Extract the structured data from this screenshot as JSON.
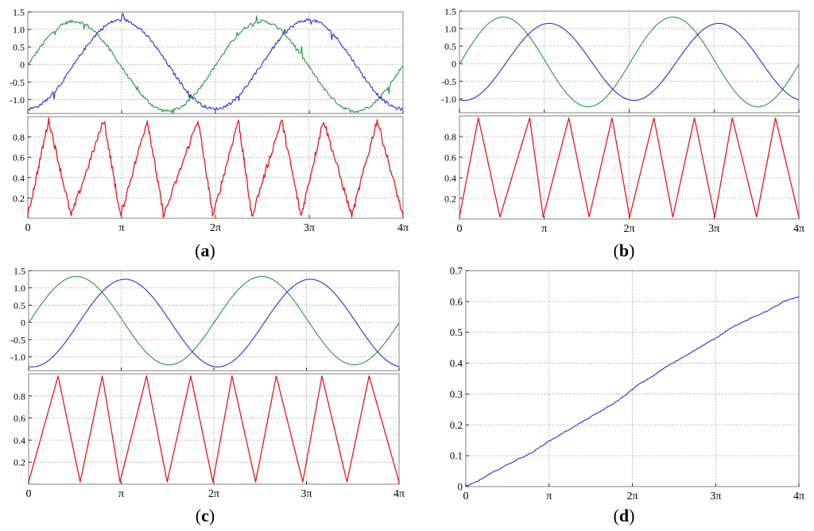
{
  "figure": {
    "colors": {
      "green": "#1f9a3a",
      "blue": "#2b2bdc",
      "red": "#e8141c",
      "axis": "#000000",
      "grid": "#9a9a9a",
      "frame": "#808080"
    },
    "x_tick_labels": [
      "0",
      "π",
      "2π",
      "3π",
      "4π"
    ]
  },
  "chart_data": [
    {
      "id": "a",
      "caption_letter": "a",
      "type": "line",
      "noisy": true,
      "top": {
        "xlim": [
          0,
          12.566
        ],
        "ylim": [
          -1.4,
          1.5
        ],
        "yticks": [
          1.5,
          1.0,
          0.5,
          0,
          -0.5,
          -1.0
        ],
        "ytick_labels": [
          "1.5",
          "1.0",
          "0.5",
          "0",
          "-0.5",
          "-1.0"
        ],
        "grid": true,
        "series": [
          {
            "color_key": "green",
            "amplitude": 1.28,
            "offset": -0.05,
            "phase": 0.17,
            "freq": 1.0
          },
          {
            "color_key": "blue",
            "amplitude": 1.27,
            "offset": 0.0,
            "phase": -1.4,
            "freq": 1.0
          }
        ]
      },
      "bottom": {
        "xlim": [
          0,
          12.566
        ],
        "ylim": [
          0,
          1.0
        ],
        "yticks": [
          0.8,
          0.6,
          0.4,
          0.2
        ],
        "ytick_labels": [
          "0.8",
          "0.6",
          "0.4",
          "0.2"
        ],
        "grid": true,
        "series": [
          {
            "color_key": "red",
            "peaks_x": [
              0.7,
              2.55,
              4.0,
              5.7,
              7.05,
              8.5,
              9.9,
              11.7
            ],
            "troughs_x": [
              0.0,
              1.45,
              3.1,
              4.55,
              6.2,
              7.5,
              9.15,
              10.85,
              12.566
            ],
            "peak_y": 0.97
          }
        ]
      },
      "xticks": [
        0,
        3.1416,
        6.2832,
        9.4248,
        12.566
      ]
    },
    {
      "id": "b",
      "caption_letter": "b",
      "type": "line",
      "noisy": false,
      "top": {
        "xlim": [
          0,
          12.566
        ],
        "ylim": [
          -1.4,
          1.5
        ],
        "yticks": [
          1.5,
          1.0,
          0.5,
          0,
          -0.5,
          -1.0
        ],
        "ytick_labels": [
          "1.5",
          "1.0",
          "0.5",
          "0",
          "-0.5",
          "-1.0"
        ],
        "grid": true,
        "series": [
          {
            "color_key": "green",
            "amplitude": 1.28,
            "offset": 0.05,
            "phase": 0.1,
            "freq": 1.0
          },
          {
            "color_key": "blue",
            "amplitude": 1.1,
            "offset": 0.05,
            "phase": -1.6,
            "freq": 1.0
          }
        ]
      },
      "bottom": {
        "xlim": [
          0,
          12.566
        ],
        "ylim": [
          0,
          1.0
        ],
        "yticks": [
          0.8,
          0.6,
          0.4,
          0.2
        ],
        "ytick_labels": [
          "0.8",
          "0.6",
          "0.4",
          "0.2"
        ],
        "grid": true,
        "series": [
          {
            "color_key": "red",
            "peaks_x": [
              0.7,
              2.6,
              4.05,
              5.65,
              7.2,
              8.7,
              10.1,
              11.7
            ],
            "troughs_x": [
              0.0,
              1.5,
              3.1,
              4.8,
              6.3,
              7.9,
              9.45,
              11.0,
              12.566
            ],
            "peak_y": 0.98
          }
        ]
      },
      "xticks": [
        0,
        3.1416,
        6.2832,
        9.4248,
        12.566
      ]
    },
    {
      "id": "c",
      "caption_letter": "c",
      "type": "line",
      "noisy": false,
      "top": {
        "xlim": [
          0,
          12.566
        ],
        "ylim": [
          -1.4,
          1.5
        ],
        "yticks": [
          1.5,
          1.0,
          0.5,
          0,
          -0.5,
          -1.0
        ],
        "ytick_labels": [
          "1.5",
          "1.0",
          "0.5",
          "0",
          "-0.5",
          "-1.0"
        ],
        "grid": true,
        "series": [
          {
            "color_key": "green",
            "amplitude": 1.28,
            "offset": 0.05,
            "phase": 0.1,
            "freq": 1.0
          },
          {
            "color_key": "blue",
            "amplitude": 1.27,
            "offset": -0.02,
            "phase": -1.55,
            "freq": 1.0
          }
        ]
      },
      "bottom": {
        "xlim": [
          0,
          12.566
        ],
        "ylim": [
          0,
          1.0
        ],
        "yticks": [
          0.8,
          0.6,
          0.4,
          0.2
        ],
        "ytick_labels": [
          "0.8",
          "0.6",
          "0.4",
          "0.2"
        ],
        "grid": true,
        "series": [
          {
            "color_key": "red",
            "peaks_x": [
              1.0,
              2.5,
              4.0,
              5.5,
              6.9,
              8.4,
              9.95,
              11.55
            ],
            "troughs_x": [
              0.0,
              1.75,
              3.1,
              4.7,
              6.25,
              7.7,
              9.3,
              10.8,
              12.566
            ],
            "peak_y": 0.98
          }
        ]
      },
      "xticks": [
        0,
        3.1416,
        6.2832,
        9.4248,
        12.566
      ]
    },
    {
      "id": "d",
      "caption_letter": "d",
      "type": "line",
      "noisy": false,
      "single": {
        "xlim": [
          0,
          12.566
        ],
        "ylim": [
          0,
          0.7
        ],
        "yticks": [
          0,
          0.1,
          0.2,
          0.3,
          0.4,
          0.5,
          0.6,
          0.7
        ],
        "ytick_labels": [
          "0",
          "0.1",
          "0.2",
          "0.3",
          "0.4",
          "0.5",
          "0.6",
          "0.7"
        ],
        "grid": true,
        "series": [
          {
            "color_key": "blue",
            "x": [
              0,
              0.5,
              1.0,
              1.5,
              2.0,
              2.5,
              3.0,
              3.5,
              4.0,
              4.5,
              5.0,
              5.5,
              6.0,
              6.5,
              7.0,
              7.5,
              8.0,
              8.5,
              9.0,
              9.5,
              10.0,
              10.5,
              11.0,
              11.5,
              12.0,
              12.566
            ],
            "y": [
              0.0,
              0.02,
              0.045,
              0.068,
              0.09,
              0.11,
              0.14,
              0.165,
              0.19,
              0.215,
              0.24,
              0.265,
              0.295,
              0.33,
              0.355,
              0.385,
              0.41,
              0.435,
              0.46,
              0.485,
              0.515,
              0.535,
              0.555,
              0.575,
              0.6,
              0.615
            ]
          }
        ]
      },
      "xticks": [
        0,
        3.1416,
        6.2832,
        9.4248,
        12.566
      ]
    }
  ]
}
